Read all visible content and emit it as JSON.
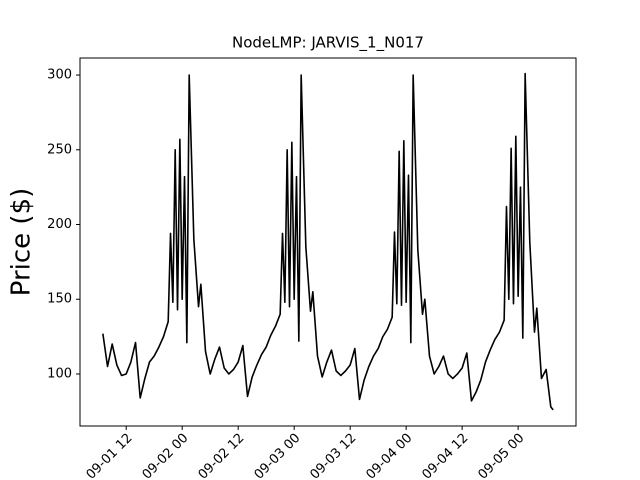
{
  "chart_data": {
    "type": "line",
    "title": "NodeLMP: JARVIS_1_N017",
    "y_label": "Price ($)",
    "x": [
      7,
      8,
      9,
      10,
      11,
      12,
      13,
      14,
      15,
      16,
      17,
      18,
      19,
      20,
      21,
      21.5,
      22,
      22.5,
      23,
      23.5,
      24,
      24.5,
      25,
      25.5,
      26.5,
      27.5,
      28,
      29,
      30,
      31,
      32,
      33,
      34,
      35,
      36,
      37,
      38,
      39,
      40,
      41,
      42,
      43,
      44,
      45,
      45.5,
      46,
      46.5,
      47,
      47.5,
      48,
      48.5,
      49,
      49.5,
      50.5,
      51.5,
      52,
      53,
      54,
      55,
      56,
      57,
      58,
      59,
      60,
      61,
      62,
      63,
      64,
      65,
      66,
      67,
      68,
      69,
      69.5,
      70,
      70.5,
      71,
      71.5,
      72,
      72.5,
      73,
      73.5,
      74.5,
      75.5,
      76,
      77,
      78,
      79,
      80,
      81,
      82,
      83,
      84,
      85,
      86,
      87,
      88,
      89,
      90,
      91,
      92,
      93,
      93.5,
      94,
      94.5,
      95,
      95.5,
      96,
      96.5,
      97,
      97.5,
      98.5,
      99.5,
      100,
      101,
      102,
      103,
      103.5
    ],
    "series": [
      {
        "name": "NodeLMP",
        "color": "#000000",
        "values": [
          127,
          105,
          120,
          106,
          99,
          100,
          108,
          121,
          84,
          97,
          108,
          112,
          118,
          125,
          135,
          194,
          148,
          250,
          143,
          257,
          150,
          232,
          121,
          300,
          190,
          145,
          160,
          115,
          100,
          110,
          118,
          104,
          100,
          103,
          108,
          119,
          85,
          98,
          106,
          113,
          118,
          126,
          132,
          140,
          194,
          148,
          250,
          145,
          255,
          150,
          232,
          122,
          300,
          185,
          142,
          155,
          112,
          98,
          108,
          116,
          102,
          99,
          102,
          106,
          117,
          83,
          96,
          105,
          112,
          117,
          125,
          130,
          138,
          195,
          147,
          249,
          146,
          256,
          148,
          233,
          121,
          300,
          183,
          140,
          150,
          112,
          100,
          105,
          112,
          100,
          97,
          100,
          104,
          114,
          82,
          88,
          96,
          108,
          116,
          123,
          128,
          136,
          212,
          150,
          251,
          147,
          259,
          152,
          225,
          124,
          301,
          188,
          128,
          144,
          97,
          103,
          78,
          76
        ]
      }
    ],
    "xlim": [
      2.1,
      108.4
    ],
    "ylim": [
      65.2,
      311.4
    ],
    "xticks": [
      {
        "value": 12,
        "label": "09-01 12"
      },
      {
        "value": 24,
        "label": "09-02 00"
      },
      {
        "value": 36,
        "label": "09-02 12"
      },
      {
        "value": 48,
        "label": "09-03 00"
      },
      {
        "value": 60,
        "label": "09-03 12"
      },
      {
        "value": 72,
        "label": "09-04 00"
      },
      {
        "value": 84,
        "label": "09-04 12"
      },
      {
        "value": 96,
        "label": "09-05 00"
      }
    ],
    "yticks": [
      100,
      150,
      200,
      250,
      300
    ],
    "grid": false
  }
}
